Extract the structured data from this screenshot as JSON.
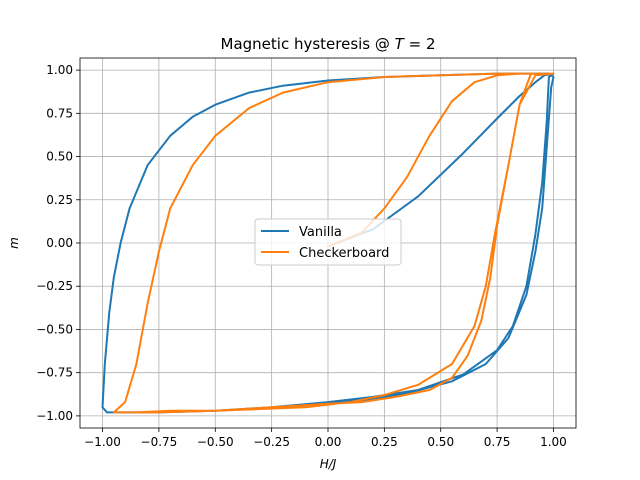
{
  "chart_data": {
    "type": "line",
    "title_prefix": "Magnetic hysteresis @ ",
    "title_var": "T",
    "title_suffix": " = 2",
    "xlabel": "H/J",
    "ylabel": "m",
    "xlim": [
      -1.1,
      1.1
    ],
    "ylim": [
      -1.07,
      1.07
    ],
    "xticks": [
      -1.0,
      -0.75,
      -0.5,
      -0.25,
      0.0,
      0.25,
      0.5,
      0.75,
      1.0
    ],
    "xtick_labels": [
      "−1.00",
      "−0.75",
      "−0.50",
      "−0.25",
      "0.00",
      "0.25",
      "0.50",
      "0.75",
      "1.00"
    ],
    "yticks": [
      -1.0,
      -0.75,
      -0.5,
      -0.25,
      0.0,
      0.25,
      0.5,
      0.75,
      1.0
    ],
    "ytick_labels": [
      "−1.00",
      "−0.75",
      "−0.50",
      "−0.25",
      "0.00",
      "0.25",
      "0.50",
      "0.75",
      "1.00"
    ],
    "grid": true,
    "legend_position": "center",
    "series": [
      {
        "name": "Vanilla",
        "color": "#1f77b4",
        "x": [
          0.0,
          0.2,
          0.4,
          0.6,
          0.75,
          0.85,
          0.92,
          0.96,
          1.0,
          0.98,
          0.97,
          0.95,
          0.92,
          0.88,
          0.82,
          0.75,
          0.6,
          0.4,
          0.2,
          0.0,
          -0.25,
          -0.5,
          -0.75,
          -0.9,
          -0.98,
          -1.0,
          -0.99,
          -0.97,
          -0.95,
          -0.92,
          -0.88,
          -0.8,
          -0.7,
          -0.6,
          -0.5,
          -0.35,
          -0.2,
          0.0,
          0.25,
          0.5,
          0.75,
          0.9,
          0.98,
          1.0,
          0.99,
          0.97,
          0.95,
          0.92,
          0.88,
          0.8,
          0.7,
          0.55,
          0.35,
          0.15,
          0.0,
          -0.25,
          -0.5,
          -0.75,
          -0.9,
          -0.98,
          -1.0
        ],
        "y": [
          -0.02,
          0.08,
          0.27,
          0.52,
          0.72,
          0.85,
          0.93,
          0.97,
          0.98,
          0.96,
          0.7,
          0.35,
          0.05,
          -0.25,
          -0.48,
          -0.62,
          -0.76,
          -0.85,
          -0.89,
          -0.92,
          -0.95,
          -0.97,
          -0.98,
          -0.98,
          -0.98,
          -0.95,
          -0.7,
          -0.4,
          -0.2,
          0.0,
          0.2,
          0.45,
          0.62,
          0.73,
          0.8,
          0.87,
          0.91,
          0.94,
          0.96,
          0.97,
          0.98,
          0.98,
          0.98,
          0.96,
          0.9,
          0.55,
          0.2,
          -0.05,
          -0.3,
          -0.55,
          -0.7,
          -0.8,
          -0.87,
          -0.91,
          -0.93,
          -0.95,
          -0.97,
          -0.98,
          -0.98,
          -0.98,
          -0.95
        ]
      },
      {
        "name": "Checkerboard",
        "color": "#ff7f0e",
        "x": [
          0.0,
          0.15,
          0.25,
          0.35,
          0.45,
          0.55,
          0.65,
          0.75,
          0.85,
          0.95,
          1.0,
          0.92,
          0.85,
          0.8,
          0.77,
          0.74,
          0.7,
          0.65,
          0.55,
          0.4,
          0.25,
          0.1,
          -0.1,
          -0.3,
          -0.5,
          -0.7,
          -0.85,
          -0.92,
          -0.95,
          -0.9,
          -0.85,
          -0.8,
          -0.75,
          -0.7,
          -0.6,
          -0.5,
          -0.35,
          -0.2,
          0.0,
          0.25,
          0.5,
          0.75,
          0.95,
          1.0,
          0.9,
          0.85,
          0.8,
          0.75,
          0.72,
          0.68,
          0.62,
          0.55,
          0.45,
          0.3,
          0.15,
          0.0,
          -0.25,
          -0.5,
          -0.75,
          -0.95
        ],
        "y": [
          -0.02,
          0.06,
          0.2,
          0.38,
          0.62,
          0.82,
          0.93,
          0.97,
          0.98,
          0.98,
          0.98,
          0.97,
          0.8,
          0.45,
          0.25,
          0.05,
          -0.25,
          -0.48,
          -0.7,
          -0.82,
          -0.88,
          -0.92,
          -0.95,
          -0.96,
          -0.97,
          -0.97,
          -0.98,
          -0.98,
          -0.98,
          -0.92,
          -0.7,
          -0.35,
          -0.05,
          0.2,
          0.45,
          0.62,
          0.78,
          0.87,
          0.93,
          0.96,
          0.97,
          0.98,
          0.98,
          0.98,
          0.98,
          0.8,
          0.45,
          0.1,
          -0.2,
          -0.45,
          -0.65,
          -0.78,
          -0.85,
          -0.89,
          -0.92,
          -0.93,
          -0.95,
          -0.97,
          -0.98,
          -0.98
        ]
      }
    ]
  }
}
